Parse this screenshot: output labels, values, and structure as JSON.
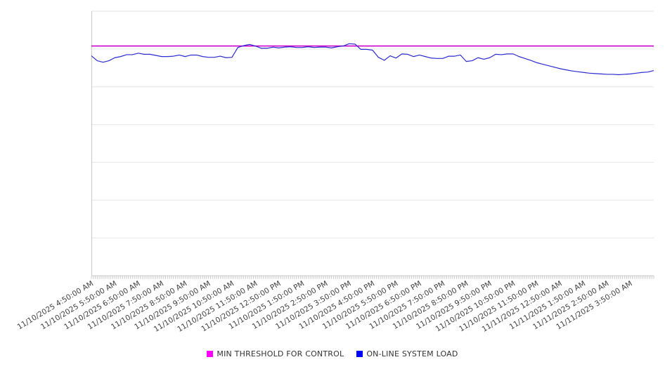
{
  "chart_data": {
    "type": "line",
    "title": "",
    "x_axis": {
      "tick_labels": [
        "11/10/2025 4:50:00 AM",
        "11/10/2025 5:50:00 AM",
        "11/10/2025 6:50:00 AM",
        "11/10/2025 7:50:00 AM",
        "11/10/2025 8:50:00 AM",
        "11/10/2025 9:50:00 AM",
        "11/10/2025 10:50:00 AM",
        "11/10/2025 11:50:00 AM",
        "11/10/2025 12:50:00 PM",
        "11/10/2025 1:50:00 PM",
        "11/10/2025 2:50:00 PM",
        "11/10/2025 3:50:00 PM",
        "11/10/2025 4:50:00 PM",
        "11/10/2025 5:50:00 PM",
        "11/10/2025 6:50:00 PM",
        "11/10/2025 7:50:00 PM",
        "11/10/2025 8:50:00 PM",
        "11/10/2025 9:50:00 PM",
        "11/10/2025 10:50:00 PM",
        "11/10/2025 11:50:00 PM",
        "11/11/2025 12:50:00 AM",
        "11/11/2025 1:50:00 AM",
        "11/11/2025 2:50:00 AM",
        "11/11/2025 3:50:00 AM"
      ],
      "minor_ticks_between_labels": 12,
      "label_rotation_deg": -31
    },
    "y_axis": {
      "min": 0,
      "max": 7,
      "gridline_step": 1,
      "labels_visible": false
    },
    "grid": {
      "horizontal": true,
      "vertical": false
    },
    "series": [
      {
        "name": "MIN THRESHOLD FOR CONTROL",
        "type": "constant-line",
        "value": 6.08,
        "color": "#cc00cc",
        "legend_color": "#ff00ff"
      },
      {
        "name": "ON-LINE SYSTEM LOAD",
        "type": "line",
        "color": "#2b2bd1",
        "legend_color": "#0000ff",
        "values": [
          5.82,
          5.69,
          5.65,
          5.69,
          5.77,
          5.8,
          5.85,
          5.85,
          5.89,
          5.86,
          5.86,
          5.83,
          5.8,
          5.8,
          5.81,
          5.84,
          5.8,
          5.84,
          5.84,
          5.8,
          5.78,
          5.78,
          5.81,
          5.77,
          5.78,
          6.04,
          6.09,
          6.12,
          6.08,
          6.02,
          6.02,
          6.05,
          6.03,
          6.05,
          6.06,
          6.04,
          6.04,
          6.06,
          6.04,
          6.05,
          6.05,
          6.03,
          6.06,
          6.08,
          6.14,
          6.13,
          5.99,
          5.99,
          5.97,
          5.78,
          5.7,
          5.82,
          5.76,
          5.87,
          5.86,
          5.8,
          5.84,
          5.8,
          5.76,
          5.75,
          5.75,
          5.81,
          5.81,
          5.84,
          5.67,
          5.69,
          5.77,
          5.73,
          5.77,
          5.86,
          5.85,
          5.87,
          5.87,
          5.8,
          5.75,
          5.7,
          5.64,
          5.6,
          5.56,
          5.52,
          5.48,
          5.45,
          5.42,
          5.4,
          5.38,
          5.36,
          5.35,
          5.34,
          5.33,
          5.33,
          5.32,
          5.33,
          5.34,
          5.36,
          5.38,
          5.39,
          5.43
        ]
      }
    ],
    "legend": {
      "position": "bottom"
    }
  },
  "colors": {
    "background": "#ffffff",
    "grid": "#e6e6e6",
    "axis": "#c9c9c9",
    "tick": "#c8c8c8",
    "axis_label": "#404040",
    "legend_text": "#333333"
  }
}
